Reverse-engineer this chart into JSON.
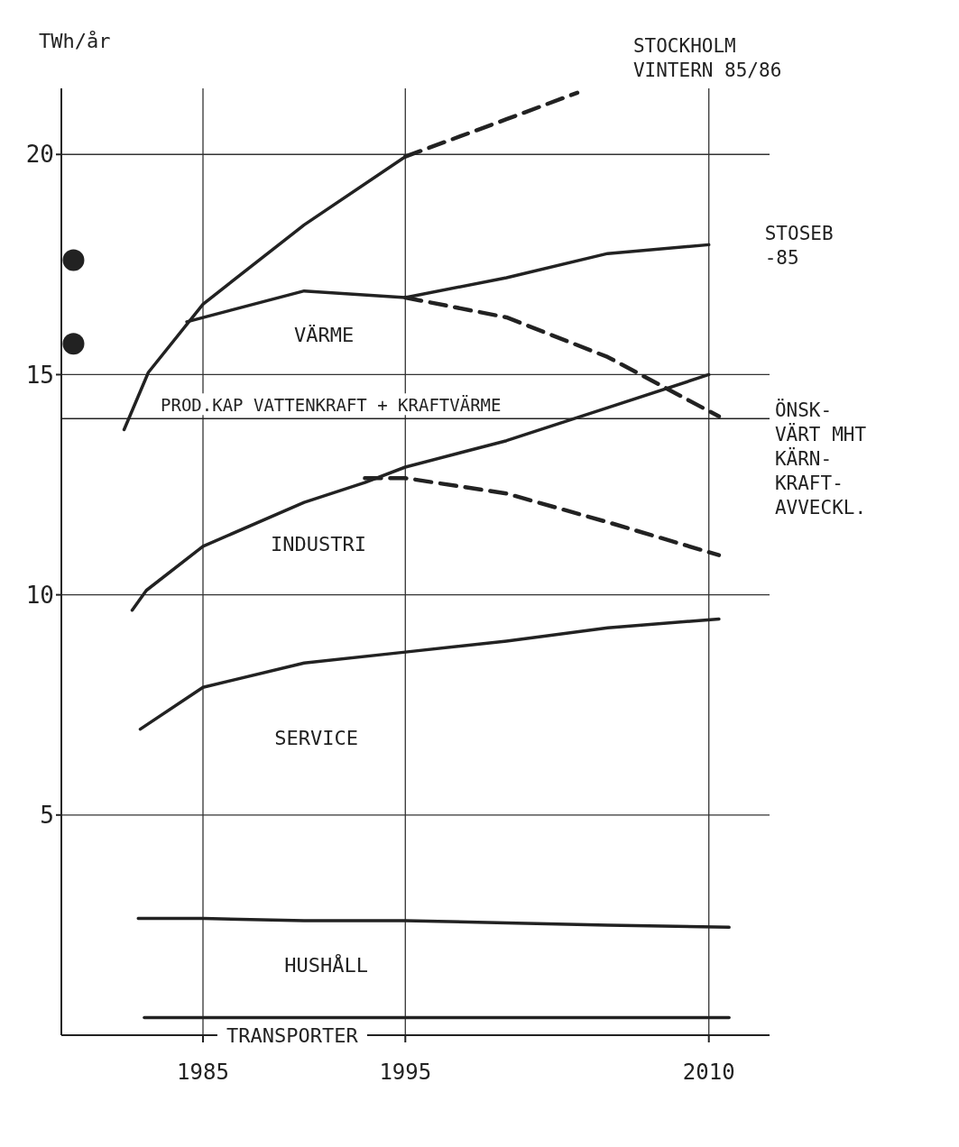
{
  "chart_data": {
    "type": "line",
    "xlim": [
      1978,
      2013
    ],
    "xticks": [
      1985,
      1995,
      2010
    ],
    "ylim": [
      0,
      21.5
    ],
    "yticks": [
      5,
      10,
      15,
      20
    ],
    "ylabel": "TWh/år",
    "grid": true,
    "marker": "none",
    "series": [
      {
        "color": "#222222",
        "x": [
          1981.8,
          1985,
          1990,
          1995,
          2000,
          2005,
          2011
        ],
        "values": [
          2.65,
          2.65,
          2.6,
          2.6,
          2.55,
          2.5,
          2.45
        ]
      },
      {
        "color": "#222222",
        "x": [
          1982.1,
          2011
        ],
        "values": [
          0.4,
          0.4
        ]
      },
      {
        "color": "#222222",
        "x": [
          1981.9,
          1985,
          1990,
          1995,
          2000,
          2005,
          2010.5
        ],
        "values": [
          6.95,
          7.9,
          8.45,
          8.7,
          8.95,
          9.25,
          9.45
        ]
      },
      {
        "color": "#222222",
        "x": [
          1981.5,
          1982.2,
          1985,
          1990,
          1993,
          1995,
          2000,
          2005,
          2010
        ],
        "values": [
          9.65,
          10.1,
          11.1,
          12.1,
          12.55,
          12.9,
          13.5,
          14.25,
          15.0
        ]
      },
      {
        "color": "#222222",
        "line_style": "dashed",
        "x": [
          1993,
          1995,
          2000,
          2005,
          2010.5
        ],
        "values": [
          12.65,
          12.65,
          12.3,
          11.65,
          10.9
        ]
      },
      {
        "color": "#222222",
        "x": [
          1981.1,
          1982.3,
          1985,
          1990,
          1995
        ],
        "values": [
          13.75,
          15.05,
          16.6,
          18.4,
          19.95
        ]
      },
      {
        "name": "STOCKHOLM\nVINTERN 85/86",
        "color": "#222222",
        "line_style": "dashed",
        "x": [
          1995,
          2000,
          2003.5
        ],
        "values": [
          19.95,
          20.8,
          21.4
        ]
      },
      {
        "name": "STOSEB\n-85",
        "color": "#222222",
        "x": [
          1984.2,
          1990,
          1995,
          2000,
          2005,
          2010
        ],
        "values": [
          16.2,
          16.9,
          16.75,
          17.2,
          17.75,
          17.95
        ]
      },
      {
        "name": "ÖNSK-\nVÄRT MHT\nKÄRN-\nKRAFT-\nAVVECKL.",
        "color": "#222222",
        "line_style": "dashed",
        "x": [
          1995,
          2000,
          2005,
          2010.5
        ],
        "values": [
          16.75,
          16.3,
          15.4,
          14.05
        ]
      },
      {
        "type": "scatter",
        "marker": "circle",
        "color": "#222222",
        "x": [
          1978.6,
          1978.6
        ],
        "values": [
          17.6,
          15.7
        ]
      }
    ],
    "ref_lines": [
      {
        "axis": "y",
        "value": 14,
        "label": "PROD.KAP VATTENKRAFT + KRAFTVÄRME",
        "color": "#222222"
      }
    ],
    "annotations": [
      "VÄRME",
      "INDUSTRI",
      "SERVICE",
      "HUSHÅLL",
      "TRANSPORTER"
    ]
  }
}
